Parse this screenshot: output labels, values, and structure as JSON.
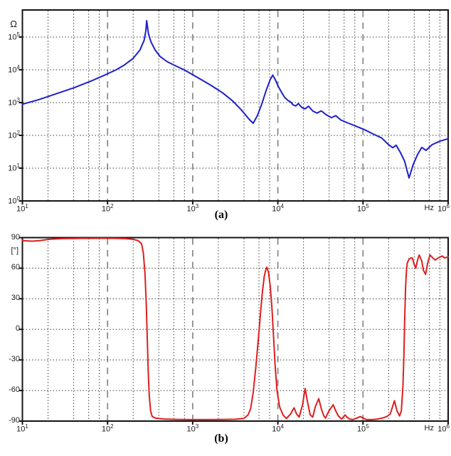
{
  "figure": {
    "caption_a": "(a)",
    "caption_b": "(b)",
    "background": "#ffffff"
  },
  "chart_data": [
    {
      "type": "line",
      "title": "",
      "xlabel": "",
      "ylabel": "Ω",
      "x_unit": "Hz",
      "x_scale": "log",
      "y_scale": "log",
      "x_range": [
        10,
        1000000
      ],
      "y_range": [
        1,
        670000
      ],
      "x_ticks": [
        "10^1",
        "10^2",
        "10^3",
        "10^4",
        "10^5",
        "10^6"
      ],
      "y_ticks": [
        "10^0",
        "10^1",
        "10^2",
        "10^3",
        "10^4",
        "10^5"
      ],
      "grid": {
        "x_major": "dashed",
        "x_minor": "dotted (2,4,6,8 per decade)",
        "y_major": "dotted"
      },
      "legend": "none",
      "series": [
        {
          "name": "impedance-magnitude",
          "color": "#1f1fce",
          "points": [
            [
              10,
              890
            ],
            [
              16,
              1260
            ],
            [
              25,
              1860
            ],
            [
              40,
              2820
            ],
            [
              63,
              4470
            ],
            [
              89,
              6600
            ],
            [
              100,
              7600
            ],
            [
              126,
              10000
            ],
            [
              158,
              14100
            ],
            [
              200,
              22400
            ],
            [
              240,
              40000
            ],
            [
              269,
              79000
            ],
            [
              282,
              158000
            ],
            [
              288,
              316000
            ],
            [
              302,
              126000
            ],
            [
              324,
              70800
            ],
            [
              363,
              39800
            ],
            [
              417,
              25100
            ],
            [
              500,
              17800
            ],
            [
              631,
              13200
            ],
            [
              794,
              10000
            ],
            [
              1000,
              7080
            ],
            [
              1260,
              5010
            ],
            [
              1660,
              3310
            ],
            [
              2240,
              2000
            ],
            [
              2950,
              1120
            ],
            [
              3720,
              600
            ],
            [
              4570,
              316
            ],
            [
              5130,
              234
            ],
            [
              5750,
              400
            ],
            [
              6460,
              890
            ],
            [
              7240,
              2240
            ],
            [
              8130,
              5010
            ],
            [
              8710,
              6920
            ],
            [
              9330,
              5010
            ],
            [
              10000,
              3310
            ],
            [
              11000,
              2090
            ],
            [
              12000,
              1450
            ],
            [
              13200,
              1150
            ],
            [
              14100,
              1050
            ],
            [
              15100,
              850
            ],
            [
              16200,
              790
            ],
            [
              17400,
              930
            ],
            [
              19100,
              710
            ],
            [
              20900,
              645
            ],
            [
              22900,
              780
            ],
            [
              25700,
              550
            ],
            [
              28800,
              480
            ],
            [
              32400,
              560
            ],
            [
              37200,
              420
            ],
            [
              42700,
              347
            ],
            [
              47900,
              400
            ],
            [
              55000,
              295
            ],
            [
              66100,
              240
            ],
            [
              83200,
              190
            ],
            [
              105000,
              148
            ],
            [
              132000,
              110
            ],
            [
              166000,
              83
            ],
            [
              200000,
              52
            ],
            [
              224000,
              42
            ],
            [
              245000,
              50
            ],
            [
              275000,
              30
            ],
            [
              309000,
              16
            ],
            [
              347000,
              5
            ],
            [
              389000,
              13
            ],
            [
              437000,
              26
            ],
            [
              490000,
              43
            ],
            [
              550000,
              35
            ],
            [
              646000,
              52
            ],
            [
              794000,
              66
            ],
            [
              1000000,
              79
            ]
          ]
        }
      ]
    },
    {
      "type": "line",
      "title": "",
      "xlabel": "",
      "ylabel": "[°]",
      "x_unit": "Hz",
      "x_scale": "log",
      "y_scale": "linear",
      "x_range": [
        10,
        1000000
      ],
      "y_range": [
        -90,
        90
      ],
      "x_ticks": [
        "10^1",
        "10^2",
        "10^3",
        "10^4",
        "10^5",
        "10^6"
      ],
      "y_ticks": [
        "90",
        "60",
        "30",
        "0",
        "-30",
        "-60",
        "-90"
      ],
      "grid": {
        "x_major": "dashed",
        "x_minor": "dotted (2,4,6,8 per decade)",
        "y_major": "dotted every 30°"
      },
      "legend": "none",
      "series": [
        {
          "name": "phase",
          "color": "#df1e1e",
          "points": [
            [
              10,
              87
            ],
            [
              13,
              86.5
            ],
            [
              16,
              87
            ],
            [
              19,
              88
            ],
            [
              22,
              88.5
            ],
            [
              30,
              89
            ],
            [
              50,
              89.3
            ],
            [
              80,
              89.4
            ],
            [
              120,
              89.3
            ],
            [
              160,
              89
            ],
            [
              200,
              88.3
            ],
            [
              229,
              87
            ],
            [
              251,
              84
            ],
            [
              263,
              75
            ],
            [
              275,
              55
            ],
            [
              285,
              25
            ],
            [
              292,
              -5
            ],
            [
              300,
              -40
            ],
            [
              309,
              -65
            ],
            [
              320,
              -80
            ],
            [
              335,
              -85.5
            ],
            [
              363,
              -87
            ],
            [
              457,
              -88
            ],
            [
              631,
              -88.3
            ],
            [
              912,
              -88.5
            ],
            [
              1410,
              -88.5
            ],
            [
              2190,
              -88.4
            ],
            [
              3160,
              -88.2
            ],
            [
              3980,
              -87.5
            ],
            [
              4470,
              -84
            ],
            [
              4790,
              -78
            ],
            [
              5130,
              -62
            ],
            [
              5500,
              -38
            ],
            [
              5890,
              -10
            ],
            [
              6310,
              20
            ],
            [
              6610,
              38
            ],
            [
              6920,
              52
            ],
            [
              7240,
              59
            ],
            [
              7410,
              61
            ],
            [
              7760,
              56
            ],
            [
              8130,
              43
            ],
            [
              8510,
              22
            ],
            [
              8910,
              -8
            ],
            [
              9330,
              -38
            ],
            [
              9770,
              -60
            ],
            [
              10500,
              -76
            ],
            [
              11500,
              -84
            ],
            [
              12600,
              -87.5
            ],
            [
              14100,
              -83
            ],
            [
              15500,
              -77
            ],
            [
              16600,
              -83
            ],
            [
              17800,
              -86
            ],
            [
              19500,
              -74
            ],
            [
              20900,
              -58
            ],
            [
              22400,
              -72
            ],
            [
              24000,
              -84
            ],
            [
              25700,
              -86
            ],
            [
              27500,
              -76
            ],
            [
              30200,
              -68
            ],
            [
              32400,
              -78
            ],
            [
              34700,
              -85
            ],
            [
              36300,
              -87
            ],
            [
              39800,
              -80
            ],
            [
              44700,
              -74
            ],
            [
              47900,
              -80
            ],
            [
              51300,
              -85
            ],
            [
              56200,
              -88
            ],
            [
              61700,
              -84
            ],
            [
              64600,
              -86
            ],
            [
              69200,
              -88
            ],
            [
              75900,
              -88.5
            ],
            [
              85100,
              -87
            ],
            [
              93300,
              -85.5
            ],
            [
              100000,
              -87
            ],
            [
              110000,
              -88.5
            ],
            [
              129000,
              -88.5
            ],
            [
              148000,
              -88
            ],
            [
              170000,
              -87
            ],
            [
              191000,
              -85.5
            ],
            [
              209000,
              -83
            ],
            [
              234000,
              -70
            ],
            [
              251000,
              -80
            ],
            [
              269000,
              -85
            ],
            [
              282000,
              -80
            ],
            [
              295000,
              -55
            ],
            [
              302000,
              -25
            ],
            [
              309000,
              10
            ],
            [
              316000,
              40
            ],
            [
              324000,
              58
            ],
            [
              331000,
              65
            ],
            [
              347000,
              69
            ],
            [
              363000,
              70
            ],
            [
              380000,
              70
            ],
            [
              398000,
              64
            ],
            [
              417000,
              60
            ],
            [
              437000,
              68
            ],
            [
              457000,
              73
            ],
            [
              490000,
              67
            ],
            [
              512000,
              58
            ],
            [
              543000,
              54
            ],
            [
              575000,
              65
            ],
            [
              611000,
              73
            ],
            [
              661000,
              70
            ],
            [
              708000,
              68
            ],
            [
              759000,
              70
            ],
            [
              851000,
              72
            ],
            [
              912000,
              70
            ],
            [
              1000000,
              71
            ]
          ]
        }
      ]
    }
  ]
}
